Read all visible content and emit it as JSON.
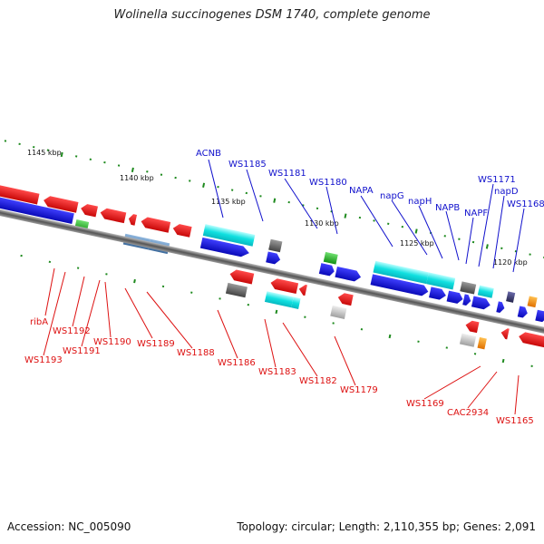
{
  "title": "Wolinella succinogenes DSM 1740, complete genome",
  "footer": {
    "accession": "Accession: NC_005090",
    "topology": "Topology: circular; Length: 2,110,355 bp; Genes: 2,091"
  },
  "colors": {
    "label_top": "#1010cc",
    "label_bottom": "#dd1111",
    "red": "#e81010",
    "blue": "#1010dd",
    "cyan": "#10e0e0",
    "green": "#20b020",
    "steel": "#4f7fb0",
    "gray": "#666666",
    "lightgray": "#c8c8c8",
    "orange": "#ff8c00",
    "navy": "#3a3a7a",
    "backbone": "#888888",
    "tick": "#1e8a1e"
  },
  "kbp_ticks": [
    {
      "label": "1145 kbp",
      "pos": 1145
    },
    {
      "label": "1140 kbp",
      "pos": 1140
    },
    {
      "label": "1135 kbp",
      "pos": 1135
    },
    {
      "label": "1130 kbp",
      "pos": 1130
    },
    {
      "label": "1125 kbp",
      "pos": 1125
    },
    {
      "label": "1120 kbp",
      "pos": 1120
    }
  ],
  "top_labels": [
    {
      "name": "ACNB"
    },
    {
      "name": "WS1185"
    },
    {
      "name": "WS1181"
    },
    {
      "name": "WS1180"
    },
    {
      "name": "NAPA"
    },
    {
      "name": "napG"
    },
    {
      "name": "napH"
    },
    {
      "name": "NAPB"
    },
    {
      "name": "NAPF"
    },
    {
      "name": "WS1171"
    },
    {
      "name": "napD"
    },
    {
      "name": "WS1168"
    }
  ],
  "bottom_labels": [
    {
      "name": "ribA"
    },
    {
      "name": "WS1193"
    },
    {
      "name": "WS1192"
    },
    {
      "name": "WS1191"
    },
    {
      "name": "WS1190"
    },
    {
      "name": "WS1189"
    },
    {
      "name": "WS1188"
    },
    {
      "name": "WS1186"
    },
    {
      "name": "WS1183"
    },
    {
      "name": "WS1182"
    },
    {
      "name": "WS1179"
    },
    {
      "name": "WS1169"
    },
    {
      "name": "CAC2934"
    },
    {
      "name": "WS1165"
    }
  ]
}
